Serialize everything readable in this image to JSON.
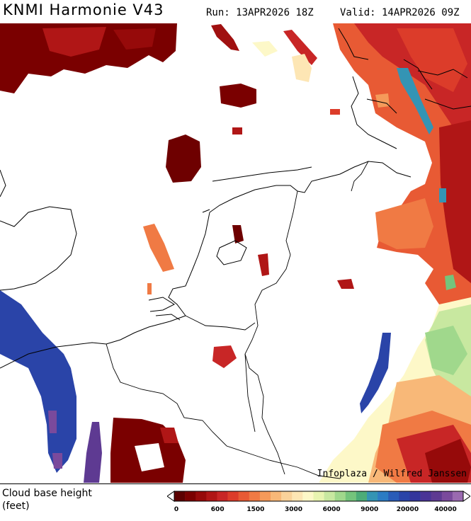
{
  "header": {
    "title": "KNMI Harmonie V43",
    "run": "Run: 13APR2026 18Z",
    "valid": "Valid: 14APR2026 09Z"
  },
  "credit": "Infoplaza / Wilfred Janssen",
  "legend": {
    "title_line1": "Cloud base height",
    "title_line2": "(feet)",
    "colors": [
      "#5c0000",
      "#7a0000",
      "#960a0a",
      "#b01616",
      "#c82626",
      "#dc3c2a",
      "#e85a34",
      "#f07a44",
      "#f59a5a",
      "#f8b878",
      "#fad29a",
      "#fde6b4",
      "#fdf8c8",
      "#e8f4b0",
      "#c8e8a0",
      "#a0d88c",
      "#74c47c",
      "#4cac78",
      "#3494b4",
      "#2c7cc4",
      "#2a5cb8",
      "#2a44a8",
      "#34369c",
      "#4a3496",
      "#5e3a92",
      "#7a4a9c",
      "#9a6ab0"
    ],
    "ticks": [
      "0",
      "600",
      "1500",
      "3000",
      "6000",
      "9000",
      "20000",
      "40000"
    ]
  }
}
